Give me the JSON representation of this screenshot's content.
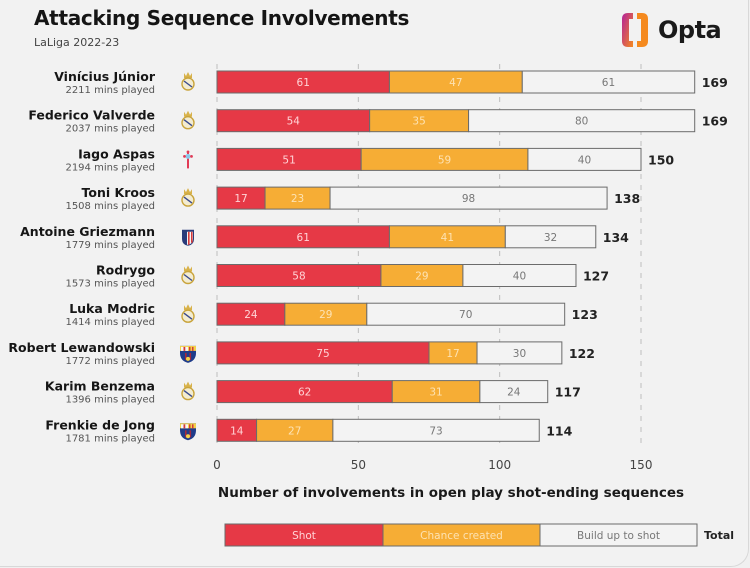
{
  "header": {
    "title": "Attacking Sequence Involvements",
    "subtitle": "LaLiga 2022-23",
    "brand": "Opta"
  },
  "colors": {
    "shot": "#e63946",
    "chance_created": "#f6ad35",
    "build_up": "#f3f3f3",
    "bar_stroke": "#6b6b6b",
    "brand_gradient_start": "#b3219b",
    "brand_gradient_end": "#f58a1f"
  },
  "chart_data": {
    "type": "bar",
    "orientation": "horizontal",
    "stacked": true,
    "title": "Attacking Sequence Involvements",
    "subtitle": "LaLiga 2022-23",
    "xlabel": "Number of involvements in open play shot-ending sequences",
    "ylabel": "",
    "xlim": [
      0,
      150
    ],
    "xticks": [
      0,
      50,
      100,
      150
    ],
    "grid": "vertical dashed at ticks",
    "legend_position": "bottom",
    "legend": [
      "Shot",
      "Chance created",
      "Build up to shot",
      "Total"
    ],
    "categories": [
      "Vinícius Júnior",
      "Federico Valverde",
      "Iago Aspas",
      "Toni Kroos",
      "Antoine Griezmann",
      "Rodrygo",
      "Luka Modric",
      "Robert Lewandowski",
      "Karim Benzema",
      "Frenkie de Jong"
    ],
    "minutes_played": [
      "2211 mins played",
      "2037 mins played",
      "2194 mins played",
      "1508 mins played",
      "1779 mins played",
      "1573 mins played",
      "1414 mins played",
      "1772 mins played",
      "1396 mins played",
      "1781 mins played"
    ],
    "clubs": [
      "real-madrid",
      "real-madrid",
      "celta-vigo",
      "real-madrid",
      "atletico-madrid",
      "real-madrid",
      "real-madrid",
      "barcelona",
      "real-madrid",
      "barcelona"
    ],
    "series": [
      {
        "name": "Shot",
        "values": [
          61,
          54,
          51,
          17,
          61,
          58,
          24,
          75,
          62,
          14
        ]
      },
      {
        "name": "Chance created",
        "values": [
          47,
          35,
          59,
          23,
          41,
          29,
          29,
          17,
          31,
          27
        ]
      },
      {
        "name": "Build up to shot",
        "values": [
          61,
          80,
          40,
          98,
          32,
          40,
          70,
          30,
          24,
          73
        ]
      }
    ],
    "totals": [
      169,
      169,
      150,
      138,
      134,
      127,
      123,
      122,
      117,
      114
    ]
  }
}
